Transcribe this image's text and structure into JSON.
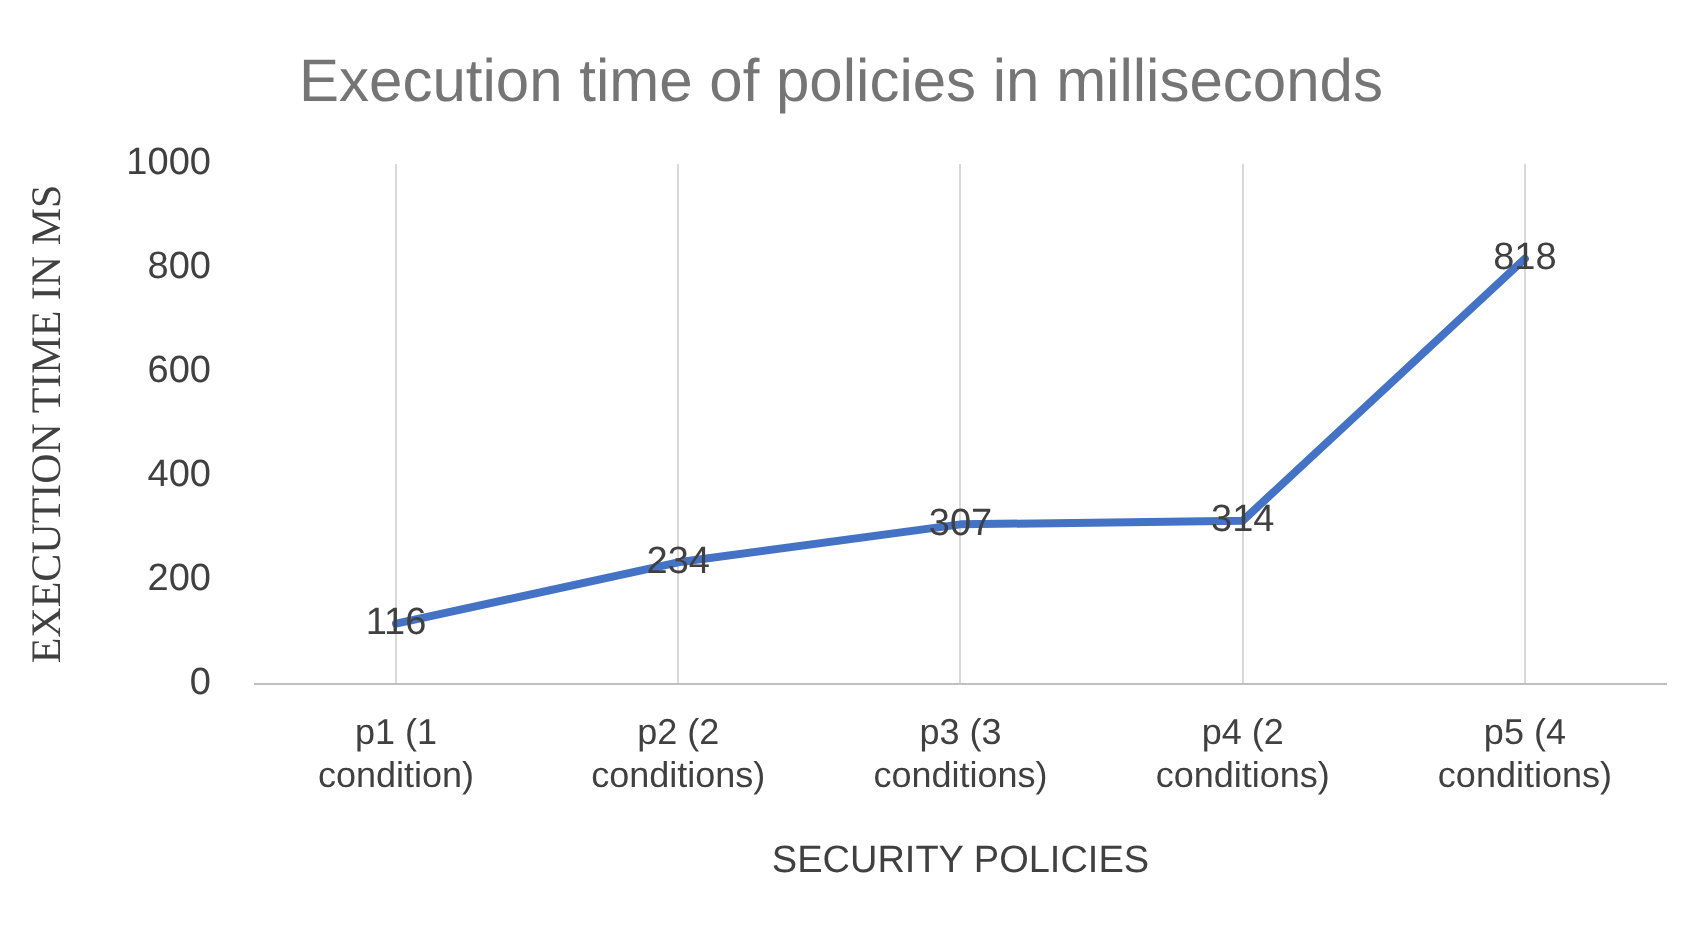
{
  "chart_data": {
    "type": "line",
    "title": "Execution time of policies in milliseconds",
    "xlabel": "SECURITY POLICIES",
    "ylabel": "EXECUTION TIME IN MS",
    "categories": [
      "p1 (1 condition)",
      "p2 (2 conditions)",
      "p3 (3 conditions)",
      "p4 (2 conditions)",
      "p5 (4 conditions)"
    ],
    "series": [
      {
        "color": "#4472c4",
        "values": [
          116,
          234,
          307,
          314,
          818
        ]
      }
    ],
    "ylim": [
      0,
      1000
    ],
    "yticks": [
      0,
      200,
      400,
      600,
      800,
      1000
    ],
    "grid": "x",
    "legend": false,
    "marker": "none",
    "line_style": "solid",
    "data_labels": true
  }
}
